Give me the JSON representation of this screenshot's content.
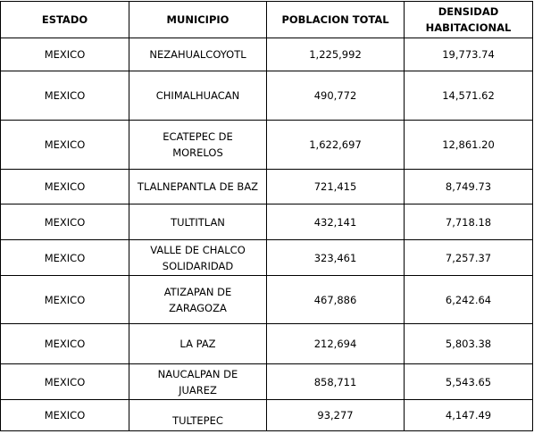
{
  "table": {
    "headers": [
      "ESTADO",
      "MUNICIPIO",
      "POBLACION TOTAL",
      "DENSIDAD HABITACIONAL"
    ],
    "rows": [
      {
        "estado": "MEXICO",
        "municipio": "NEZAHUALCOYOTL",
        "poblacion": "1,225,992",
        "densidad": "19,773.74"
      },
      {
        "estado": "MEXICO",
        "municipio": "CHIMALHUACAN",
        "poblacion": "490,772",
        "densidad": "14,571.62"
      },
      {
        "estado": "MEXICO",
        "municipio": "ECATEPEC DE MORELOS",
        "poblacion": "1,622,697",
        "densidad": "12,861.20"
      },
      {
        "estado": "MEXICO",
        "municipio": "TLALNEPANTLA DE BAZ",
        "poblacion": "721,415",
        "densidad": "8,749.73"
      },
      {
        "estado": "MEXICO",
        "municipio": "TULTITLAN",
        "poblacion": "432,141",
        "densidad": "7,718.18"
      },
      {
        "estado": "MEXICO",
        "municipio": "VALLE DE CHALCO SOLIDARIDAD",
        "poblacion": "323,461",
        "densidad": "7,257.37"
      },
      {
        "estado": "MEXICO",
        "municipio": "ATIZAPAN DE ZARAGOZA",
        "poblacion": "467,886",
        "densidad": "6,242.64"
      },
      {
        "estado": "MEXICO",
        "municipio": "LA PAZ",
        "poblacion": "212,694",
        "densidad": "5,803.38"
      },
      {
        "estado": "MEXICO",
        "municipio": "NAUCALPAN DE JUAREZ",
        "poblacion": "858,711",
        "densidad": "5,543.65"
      },
      {
        "estado": "MEXICO",
        "municipio": "TULTEPEC",
        "poblacion": "93,277",
        "densidad": "4,147.49"
      }
    ]
  }
}
